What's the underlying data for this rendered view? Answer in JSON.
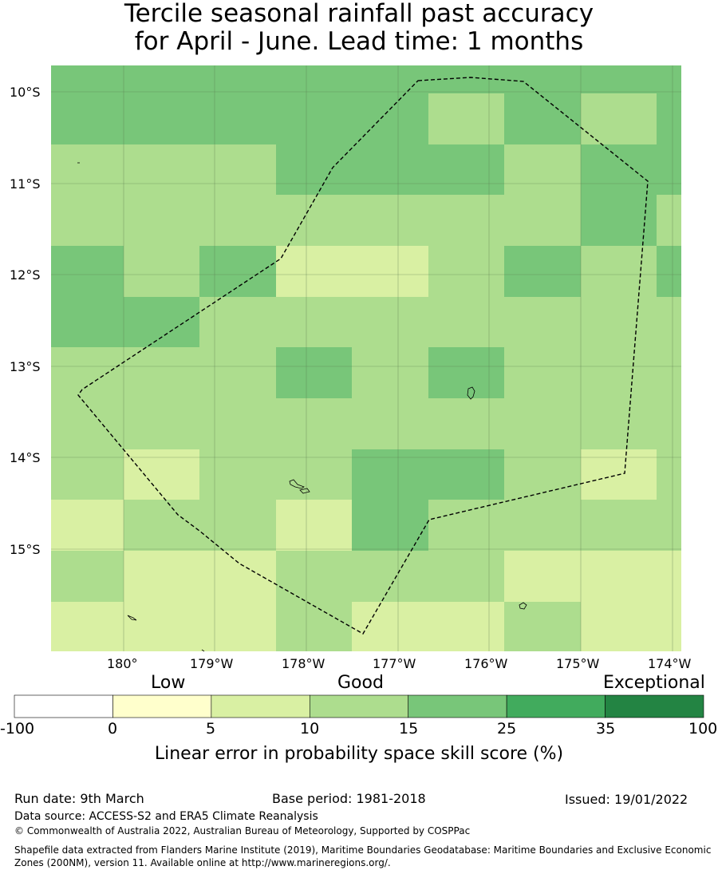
{
  "title": {
    "line1": "Tercile seasonal rainfall past accuracy",
    "line2": "for April - June. Lead time: 1 months"
  },
  "map": {
    "lat_labels": [
      "10°S",
      "11°S",
      "12°S",
      "13°S",
      "14°S",
      "15°S"
    ],
    "lon_labels": [
      "180°",
      "179°W",
      "178°W",
      "177°W",
      "176°W",
      "175°W",
      "174°W"
    ],
    "grid_rows": [
      [
        3,
        3,
        3,
        3,
        3,
        2,
        3,
        2,
        3
      ],
      [
        2,
        2,
        2,
        3,
        3,
        3,
        2,
        3,
        3
      ],
      [
        2,
        2,
        2,
        2,
        2,
        2,
        2,
        3,
        2
      ],
      [
        3,
        2,
        3,
        1,
        1,
        2,
        3,
        2,
        3
      ],
      [
        3,
        3,
        2,
        2,
        2,
        2,
        2,
        2,
        2
      ],
      [
        2,
        2,
        2,
        3,
        2,
        3,
        2,
        2,
        2
      ],
      [
        2,
        2,
        2,
        2,
        2,
        2,
        2,
        2,
        2
      ],
      [
        2,
        1,
        2,
        2,
        3,
        3,
        2,
        1,
        2
      ],
      [
        1,
        2,
        2,
        1,
        3,
        2,
        2,
        2,
        2
      ],
      [
        2,
        1,
        1,
        2,
        2,
        2,
        1,
        1,
        1
      ],
      [
        1,
        1,
        1,
        2,
        1,
        1,
        2,
        1,
        1
      ]
    ],
    "boundary": "EEZ dashed line"
  },
  "colorbar": {
    "categories": [
      "Low",
      "Good",
      "Exceptional"
    ],
    "ticks": [
      "-100",
      "0",
      "5",
      "10",
      "15",
      "25",
      "35",
      "100"
    ],
    "colors": [
      "#ffffff",
      "#ffffcc",
      "#d9f0a3",
      "#addd8e",
      "#78c679",
      "#41ab5d",
      "#238443"
    ],
    "label": "Linear error in probability space skill score (%)"
  },
  "footer": {
    "run_date": "Run date: 9th March",
    "base_period": "Base period: 1981-2018",
    "issued": "Issued: 19/01/2022",
    "data_source": "Data source: ACCESS-S2 and ERA5 Climate Reanalysis",
    "copyright": "© Commonwealth of Australia 2022, Australian Bureau of Meteorology, Supported by COSPPac",
    "shapefile": "Shapefile data extracted from Flanders Marine Institute (2019), Maritime Boundaries Geodatabase: Maritime Boundaries and Exclusive Economic Zones (200NM), version 11. Available online at http://www.marineregions.org/."
  }
}
